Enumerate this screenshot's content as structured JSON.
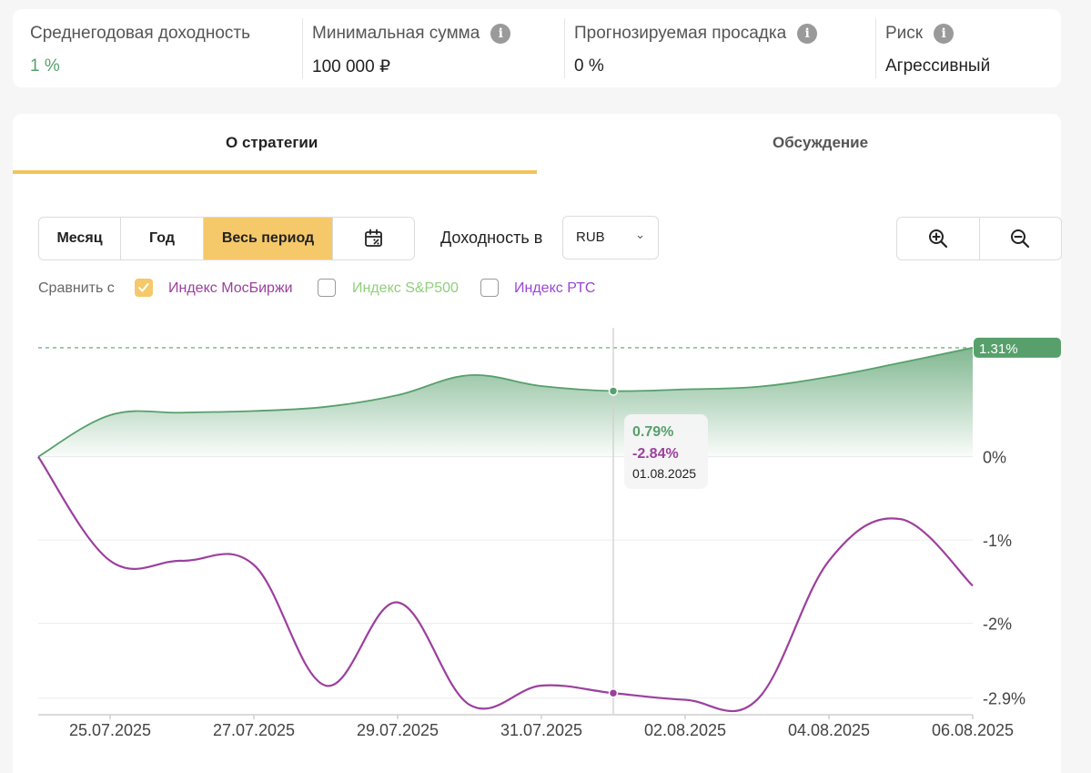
{
  "stats": [
    {
      "label": "Среднегодовая доходность",
      "value": "1 %",
      "info": false
    },
    {
      "label": "Минимальная сумма",
      "value": "100 000 ₽",
      "info": true
    },
    {
      "label": "Прогнозируемая просадка",
      "value": "0 %",
      "info": true
    },
    {
      "label": "Риск",
      "value": "Агрессивный",
      "info": true
    }
  ],
  "tabs": [
    {
      "label": "О стратегии",
      "active": true
    },
    {
      "label": "Обсуждение",
      "active": false
    }
  ],
  "period": {
    "month": "Месяц",
    "year": "Год",
    "all": "Весь период",
    "active": "all"
  },
  "yield_label": "Доходность в",
  "currency": "RUB",
  "compare": {
    "label": "Сравнить с",
    "items": [
      {
        "label": "Индекс МосБиржи",
        "checked": true,
        "color": "#9c3f9e"
      },
      {
        "label": "Индекс S&P500",
        "checked": false,
        "color": "#8fcf7a"
      },
      {
        "label": "Индекс РТС",
        "checked": false,
        "color": "#9b45d6"
      }
    ]
  },
  "colors": {
    "strategy": "#57a06c",
    "index": "#9c3f9e",
    "accent": "#f5c86a",
    "badge": "#57a06c"
  },
  "chart_data": {
    "type": "line",
    "x": [
      "24.07.2025",
      "25.07.2025",
      "26.07.2025",
      "27.07.2025",
      "28.07.2025",
      "29.07.2025",
      "30.07.2025",
      "31.07.2025",
      "01.08.2025",
      "02.08.2025",
      "03.08.2025",
      "04.08.2025",
      "05.08.2025",
      "06.08.2025"
    ],
    "x_tick_labels": [
      "25.07.2025",
      "27.07.2025",
      "29.07.2025",
      "31.07.2025",
      "02.08.2025",
      "04.08.2025",
      "06.08.2025"
    ],
    "y_tick_labels": [
      "0%",
      "-1%",
      "-2%",
      "-2.9%"
    ],
    "y_ticks": [
      0,
      -1,
      -2,
      -2.9
    ],
    "ylim": [
      -3.1,
      1.55
    ],
    "series": [
      {
        "values": [
          0,
          0.5,
          0.53,
          0.55,
          0.6,
          0.74,
          0.98,
          0.85,
          0.79,
          0.81,
          0.84,
          0.96,
          1.13,
          1.31
        ]
      },
      {
        "values": [
          0,
          -1.25,
          -1.25,
          -1.3,
          -2.75,
          -1.75,
          -2.98,
          -2.75,
          -2.84,
          -2.92,
          -2.92,
          -1.25,
          -0.75,
          -1.55
        ]
      }
    ],
    "last_value_label": "1.31%",
    "tooltip": {
      "strategy": "0.79%",
      "index": "-2.84%",
      "date": "01.08.2025"
    },
    "grid": true
  }
}
